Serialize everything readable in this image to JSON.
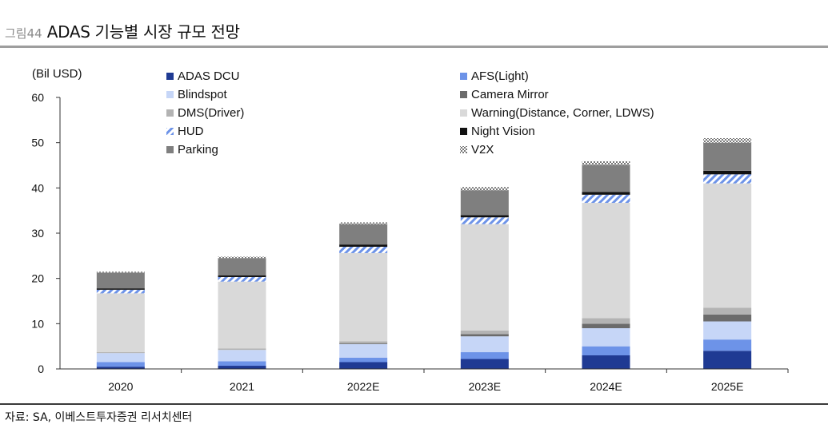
{
  "figure": {
    "label": "그림44",
    "title": "ADAS 기능별 시장 규모 전망",
    "source": "자료: SA, 이베스트투자증권 리서치센터"
  },
  "chart_data": {
    "type": "bar",
    "stacked": true,
    "unit_label": "(Bil USD)",
    "categories": [
      "2020",
      "2021",
      "2022E",
      "2023E",
      "2024E",
      "2025E"
    ],
    "ylim": [
      0,
      60
    ],
    "yticks": [
      0,
      10,
      20,
      30,
      40,
      50,
      60
    ],
    "legend_position": "top",
    "series": [
      {
        "name": "ADAS DCU",
        "color": "#1f3a93",
        "pattern": "solid",
        "values": [
          0.5,
          0.7,
          1.5,
          2.2,
          3.0,
          4.0
        ]
      },
      {
        "name": "AFS(Light)",
        "color": "#6d93e8",
        "pattern": "solid",
        "values": [
          1.0,
          1.0,
          1.0,
          1.5,
          2.0,
          2.5
        ]
      },
      {
        "name": "Blindspot",
        "color": "#c6d6f7",
        "pattern": "solid",
        "values": [
          2.0,
          2.5,
          3.0,
          3.5,
          4.0,
          4.0
        ]
      },
      {
        "name": "Camera Mirror",
        "color": "#6b6b6b",
        "pattern": "solid",
        "values": [
          0.0,
          0.0,
          0.2,
          0.5,
          1.0,
          1.5
        ]
      },
      {
        "name": "DMS(Driver)",
        "color": "#b3b3b3",
        "pattern": "solid",
        "values": [
          0.2,
          0.3,
          0.4,
          0.8,
          1.2,
          1.5
        ]
      },
      {
        "name": "Warning(Distance, Corner, LDWS)",
        "color": "#d9d9d9",
        "pattern": "solid",
        "values": [
          13.0,
          14.8,
          19.5,
          23.5,
          25.5,
          27.5
        ]
      },
      {
        "name": "HUD",
        "color": "#6d93e8",
        "pattern": "hatch",
        "values": [
          0.8,
          1.0,
          1.4,
          1.5,
          1.8,
          2.0
        ]
      },
      {
        "name": "Night Vision",
        "color": "#111111",
        "pattern": "solid",
        "values": [
          0.3,
          0.4,
          0.5,
          0.5,
          0.6,
          0.8
        ]
      },
      {
        "name": "Parking",
        "color": "#7f7f7f",
        "pattern": "solid",
        "values": [
          3.5,
          3.8,
          4.5,
          5.5,
          6.0,
          6.2
        ]
      },
      {
        "name": "V2X",
        "color": "#777777",
        "pattern": "dots",
        "values": [
          0.2,
          0.3,
          0.4,
          0.7,
          0.8,
          1.0
        ]
      }
    ]
  }
}
